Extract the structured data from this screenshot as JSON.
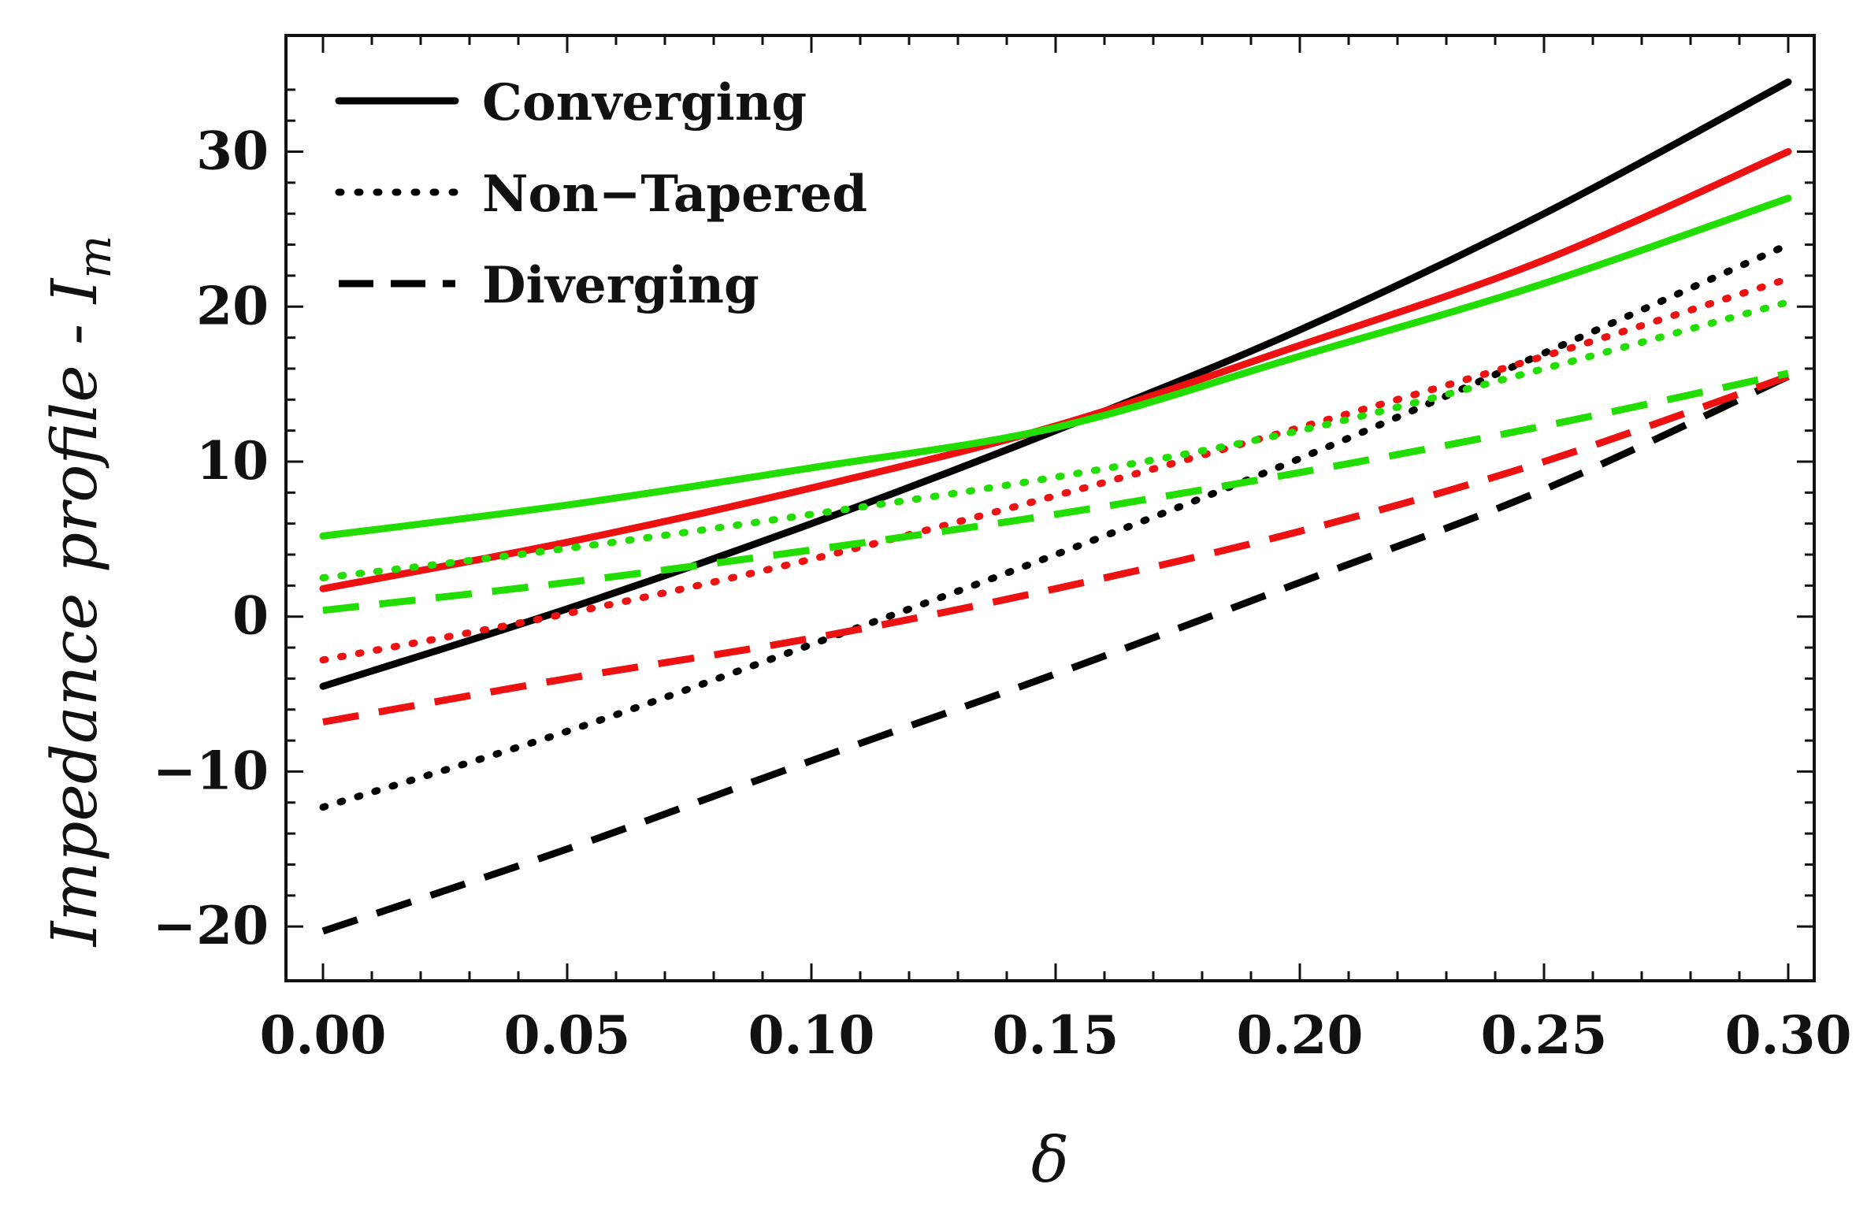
{
  "chart_data": {
    "type": "line",
    "title": "",
    "xlabel": "δ",
    "ylabel": "Impedance profile - I",
    "ylabel_subscript": "m",
    "xlim": [
      0.0,
      0.3
    ],
    "ylim": [
      -23.5,
      37.5
    ],
    "x_ticks": [
      0.0,
      0.05,
      0.1,
      0.15,
      0.2,
      0.25,
      0.3
    ],
    "x_tick_labels": [
      "0.00",
      "0.05",
      "0.10",
      "0.15",
      "0.20",
      "0.25",
      "0.30"
    ],
    "y_ticks": [
      -20,
      -10,
      0,
      10,
      20,
      30
    ],
    "y_tick_labels": [
      "−20",
      "−10",
      "0",
      "10",
      "20",
      "30"
    ],
    "grid": false,
    "legend_position": "top-left",
    "legend": [
      {
        "label": "Converging",
        "style": "solid"
      },
      {
        "label": "Non−Tapered",
        "style": "dotted"
      },
      {
        "label": "Diverging",
        "style": "dashed"
      }
    ],
    "x": [
      0.0,
      0.05,
      0.1,
      0.15,
      0.2,
      0.25,
      0.3
    ],
    "series": [
      {
        "name": "Converging (black)",
        "style": "solid",
        "color": "#000000",
        "values": [
          -4.5,
          0.5,
          6.0,
          12.0,
          18.5,
          26.0,
          34.5
        ]
      },
      {
        "name": "Converging (red)",
        "style": "solid",
        "color": "#ee1111",
        "values": [
          1.8,
          4.8,
          8.3,
          12.3,
          17.5,
          23.0,
          30.0
        ]
      },
      {
        "name": "Converging (green)",
        "style": "solid",
        "color": "#22dd00",
        "values": [
          5.2,
          7.2,
          9.6,
          12.2,
          16.8,
          21.5,
          27.0
        ]
      },
      {
        "name": "Non-Tapered (black)",
        "style": "dotted",
        "color": "#000000",
        "values": [
          -12.3,
          -7.4,
          -1.8,
          4.0,
          10.2,
          17.0,
          24.0
        ]
      },
      {
        "name": "Non-Tapered (red)",
        "style": "dotted",
        "color": "#ee1111",
        "values": [
          -2.8,
          0.2,
          3.7,
          7.8,
          12.2,
          16.8,
          21.8
        ]
      },
      {
        "name": "Non-Tapered (green)",
        "style": "dotted",
        "color": "#22dd00",
        "values": [
          2.5,
          4.4,
          6.6,
          9.0,
          12.0,
          16.0,
          20.3
        ]
      },
      {
        "name": "Diverging (black)",
        "style": "dashed",
        "color": "#000000",
        "values": [
          -20.3,
          -15.0,
          -9.3,
          -3.7,
          2.2,
          8.2,
          15.5
        ]
      },
      {
        "name": "Diverging (red)",
        "style": "dashed",
        "color": "#ee1111",
        "values": [
          -6.8,
          -4.0,
          -1.4,
          1.8,
          5.5,
          10.0,
          15.5
        ]
      },
      {
        "name": "Diverging (green)",
        "style": "dashed",
        "color": "#22dd00",
        "values": [
          0.4,
          2.2,
          4.3,
          6.6,
          9.3,
          12.3,
          15.7
        ]
      }
    ]
  }
}
